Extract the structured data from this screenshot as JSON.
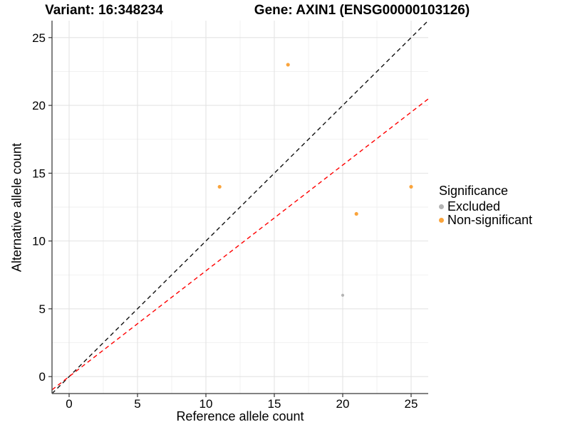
{
  "figure": {
    "title_left": "Variant: 16:348234",
    "title_right": "Gene: AXIN1 (ENSG00000103126)"
  },
  "chart_data": {
    "type": "scatter",
    "title": "Variant: 16:348234   Gene: AXIN1 (ENSG00000103126)",
    "xlabel": "Reference allele count",
    "ylabel": "Alternative allele count",
    "xlim": [
      -1.25,
      26.25
    ],
    "ylim": [
      -1.25,
      26.25
    ],
    "x_ticks": [
      0,
      5,
      10,
      15,
      20,
      25
    ],
    "y_ticks": [
      0,
      5,
      10,
      15,
      20,
      25
    ],
    "x_minor_ticks": [
      2.5,
      7.5,
      12.5,
      17.5,
      22.5
    ],
    "y_minor_ticks": [
      2.5,
      7.5,
      12.5,
      17.5,
      22.5
    ],
    "grid": true,
    "legend": {
      "title": "Significance",
      "position": "right"
    },
    "series": [
      {
        "name": "Excluded",
        "color": "#B4B4B4",
        "marker_radius": 2.1,
        "points": [
          {
            "x": 20,
            "y": 6
          }
        ]
      },
      {
        "name": "Non-significant",
        "color": "#FAA43C",
        "marker_radius": 2.6,
        "points": [
          {
            "x": 11,
            "y": 14
          },
          {
            "x": 16,
            "y": 23
          },
          {
            "x": 21,
            "y": 12
          },
          {
            "x": 25,
            "y": 14
          }
        ]
      }
    ],
    "reference_lines": [
      {
        "name": "identity",
        "slope": 1,
        "intercept": 0,
        "color": "#111111",
        "style": "dashed"
      },
      {
        "name": "expected-ratio",
        "slope": 0.78,
        "intercept": 0,
        "color": "#FF0000",
        "style": "dashed"
      }
    ],
    "colors": {
      "grid_major": "#E3E3E3",
      "grid_minor": "#EFEFEF",
      "axis_line": "#595959"
    }
  }
}
